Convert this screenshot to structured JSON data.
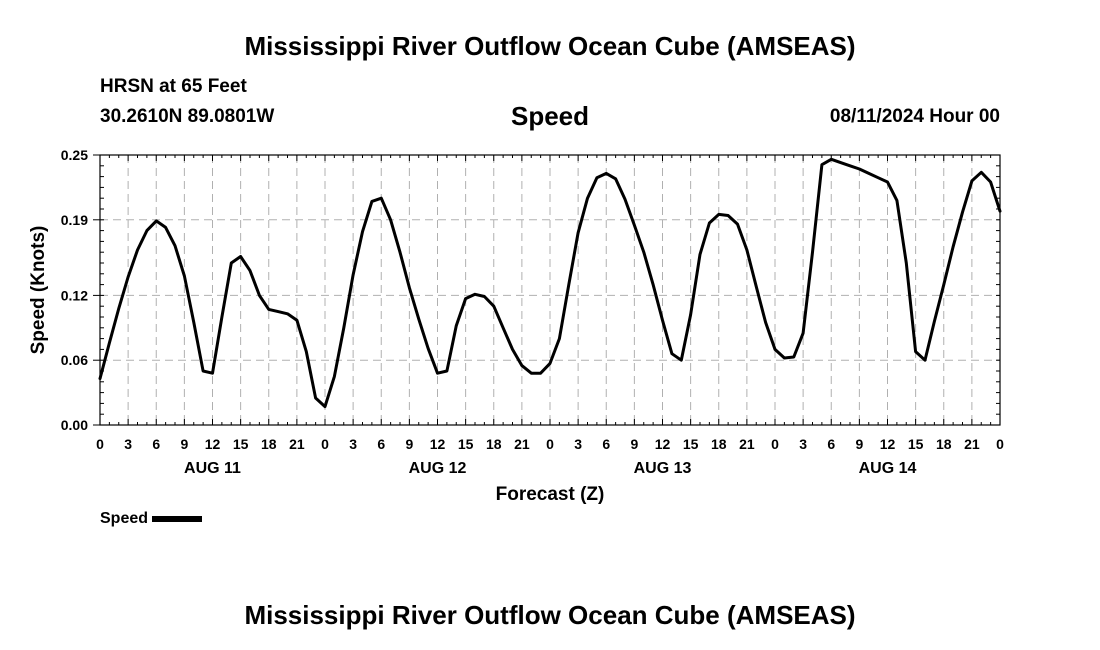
{
  "header": {
    "title": "Mississippi River Outflow Ocean Cube (AMSEAS)",
    "station": "HRSN at 65 Feet",
    "coords": "30.2610N  89.0801W",
    "variable": "Speed",
    "datetime": "08/11/2024 Hour 00"
  },
  "legend": {
    "label": "Speed"
  },
  "footer": {
    "title": "Mississippi River Outflow Ocean Cube (AMSEAS)"
  },
  "chart_data": {
    "type": "line",
    "title": "Speed",
    "xlabel": "Forecast (Z)",
    "ylabel": "Speed (Knots)",
    "ylim": [
      0,
      0.25
    ],
    "y_ticks": [
      "0.00",
      "0.06",
      "0.12",
      "0.19",
      "0.25"
    ],
    "x_tick_labels": [
      "0",
      "3",
      "6",
      "9",
      "12",
      "15",
      "18",
      "21",
      "0",
      "3",
      "6",
      "9",
      "12",
      "15",
      "18",
      "21",
      "0",
      "3",
      "6",
      "9",
      "12",
      "15",
      "18",
      "21",
      "0",
      "3",
      "6",
      "9",
      "12",
      "15",
      "18",
      "21",
      "0"
    ],
    "x_range_hours": [
      0,
      96
    ],
    "day_labels": [
      "AUG 11",
      "AUG 12",
      "AUG 13",
      "AUG 14"
    ],
    "grid": true,
    "legend_position": "bottom-left",
    "series": [
      {
        "name": "Speed",
        "color": "#000000",
        "x": [
          0,
          1,
          2,
          3,
          4,
          5,
          6,
          7,
          8,
          9,
          10,
          11,
          12,
          13,
          14,
          15,
          16,
          17,
          18,
          19,
          20,
          21,
          22,
          23,
          24,
          25,
          26,
          27,
          28,
          29,
          30,
          31,
          32,
          33,
          34,
          35,
          36,
          37,
          38,
          39,
          40,
          41,
          42,
          43,
          44,
          45,
          46,
          47,
          48,
          49,
          50,
          51,
          52,
          53,
          54,
          55,
          56,
          57,
          58,
          59,
          60,
          61,
          62,
          63,
          64,
          65,
          66,
          67,
          68,
          69,
          70,
          71,
          72,
          73,
          74,
          75,
          76,
          77,
          78,
          79,
          80,
          81,
          82,
          83,
          84,
          85,
          86,
          87,
          88,
          89,
          90,
          91,
          92,
          93,
          94,
          95,
          96
        ],
        "y": [
          0.043,
          0.076,
          0.108,
          0.137,
          0.162,
          0.18,
          0.189,
          0.183,
          0.166,
          0.138,
          0.095,
          0.05,
          0.048,
          0.1,
          0.15,
          0.156,
          0.143,
          0.12,
          0.107,
          0.105,
          0.103,
          0.097,
          0.068,
          0.025,
          0.017,
          0.045,
          0.09,
          0.139,
          0.179,
          0.207,
          0.21,
          0.19,
          0.16,
          0.127,
          0.098,
          0.071,
          0.048,
          0.05,
          0.092,
          0.117,
          0.121,
          0.119,
          0.11,
          0.09,
          0.07,
          0.055,
          0.048,
          0.048,
          0.057,
          0.08,
          0.13,
          0.178,
          0.21,
          0.229,
          0.233,
          0.228,
          0.209,
          0.185,
          0.16,
          0.13,
          0.097,
          0.066,
          0.06,
          0.102,
          0.158,
          0.187,
          0.195,
          0.194,
          0.186,
          0.162,
          0.128,
          0.095,
          0.07,
          0.062,
          0.063,
          0.085,
          0.16,
          0.241,
          0.246,
          0.243,
          0.24,
          0.237,
          0.233,
          0.229,
          0.225,
          0.208,
          0.15,
          0.068,
          0.06,
          0.096,
          0.13,
          0.165,
          0.197,
          0.226,
          0.234,
          0.225,
          0.198
        ]
      }
    ]
  }
}
